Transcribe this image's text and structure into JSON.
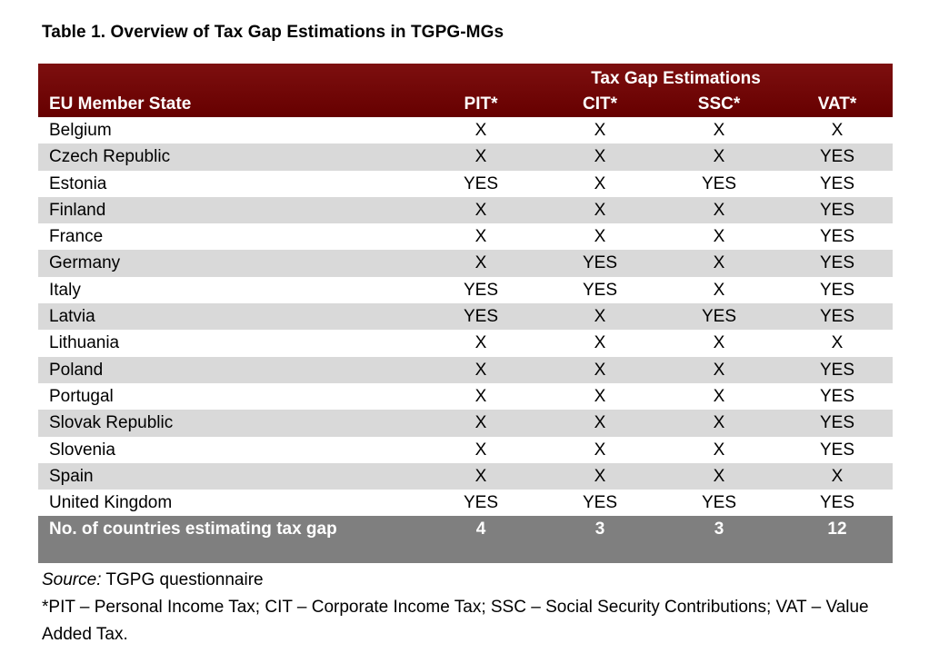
{
  "title": "Table 1. Overview of Tax Gap Estimations in TGPG-MGs",
  "header": {
    "group_label": "Tax Gap Estimations",
    "state_label": "EU Member State",
    "columns": [
      "PIT*",
      "CIT*",
      "SSC*",
      "VAT*"
    ]
  },
  "rows": [
    {
      "state": "Belgium",
      "values": [
        "X",
        "X",
        "X",
        "X"
      ]
    },
    {
      "state": "Czech Republic",
      "values": [
        "X",
        "X",
        "X",
        "YES"
      ]
    },
    {
      "state": "Estonia",
      "values": [
        "YES",
        "X",
        "YES",
        "YES"
      ]
    },
    {
      "state": "Finland",
      "values": [
        "X",
        "X",
        "X",
        "YES"
      ]
    },
    {
      "state": "France",
      "values": [
        "X",
        "X",
        "X",
        "YES"
      ]
    },
    {
      "state": "Germany",
      "values": [
        "X",
        "YES",
        "X",
        "YES"
      ]
    },
    {
      "state": "Italy",
      "values": [
        "YES",
        "YES",
        "X",
        "YES"
      ]
    },
    {
      "state": "Latvia",
      "values": [
        "YES",
        "X",
        "YES",
        "YES"
      ]
    },
    {
      "state": "Lithuania",
      "values": [
        "X",
        "X",
        "X",
        "X"
      ]
    },
    {
      "state": "Poland",
      "values": [
        "X",
        "X",
        "X",
        "YES"
      ]
    },
    {
      "state": "Portugal",
      "values": [
        "X",
        "X",
        "X",
        "YES"
      ]
    },
    {
      "state": "Slovak Republic",
      "values": [
        "X",
        "X",
        "X",
        "YES"
      ]
    },
    {
      "state": "Slovenia",
      "values": [
        "X",
        "X",
        "X",
        "YES"
      ]
    },
    {
      "state": "Spain",
      "values": [
        "X",
        "X",
        "X",
        "X"
      ]
    },
    {
      "state": "United Kingdom",
      "values": [
        "YES",
        "YES",
        "YES",
        "YES"
      ]
    }
  ],
  "total": {
    "label": "No. of countries estimating tax gap",
    "values": [
      "4",
      "3",
      "3",
      "12"
    ]
  },
  "notes": {
    "source_label": "Source:",
    "source_text": " TGPG questionnaire",
    "footnote": "*PIT – Personal Income Tax; CIT – Corporate Income Tax; SSC – Social Security Contributions; VAT – Value Added Tax."
  },
  "colors": {
    "header_bg": "#700000",
    "stripe_bg": "#d9d9d9",
    "total_bg": "#7f7f7f"
  }
}
